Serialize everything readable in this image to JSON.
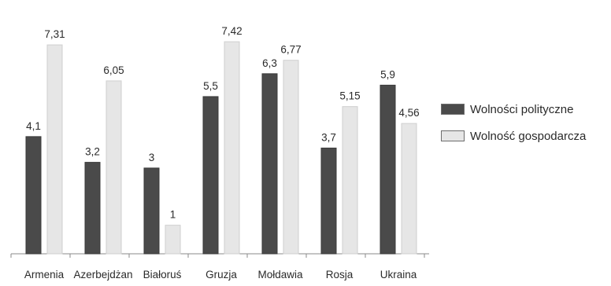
{
  "chart_data": {
    "type": "bar",
    "categories": [
      "Armenia",
      "Azerbejdżan",
      "Białoruś",
      "Gruzja",
      "Mołdawia",
      "Rosja",
      "Ukraina"
    ],
    "series": [
      {
        "name": "Wolności polityczne",
        "color": "#4a4a4a",
        "values": [
          4.1,
          3.2,
          3,
          5.5,
          6.3,
          3.7,
          5.9
        ],
        "labels": [
          "4,1",
          "3,2",
          "3",
          "5,5",
          "6,3",
          "3,7",
          "5,9"
        ]
      },
      {
        "name": "Wolność gospodarcza",
        "color": "#e6e6e6",
        "values": [
          7.31,
          6.05,
          1,
          7.42,
          6.77,
          5.15,
          4.56
        ],
        "labels": [
          "7,31",
          "6,05",
          "1",
          "7,42",
          "6,77",
          "5,15",
          "4,56"
        ]
      }
    ],
    "ylim": [
      0,
      8
    ],
    "grid": false,
    "legend_position": "right"
  }
}
